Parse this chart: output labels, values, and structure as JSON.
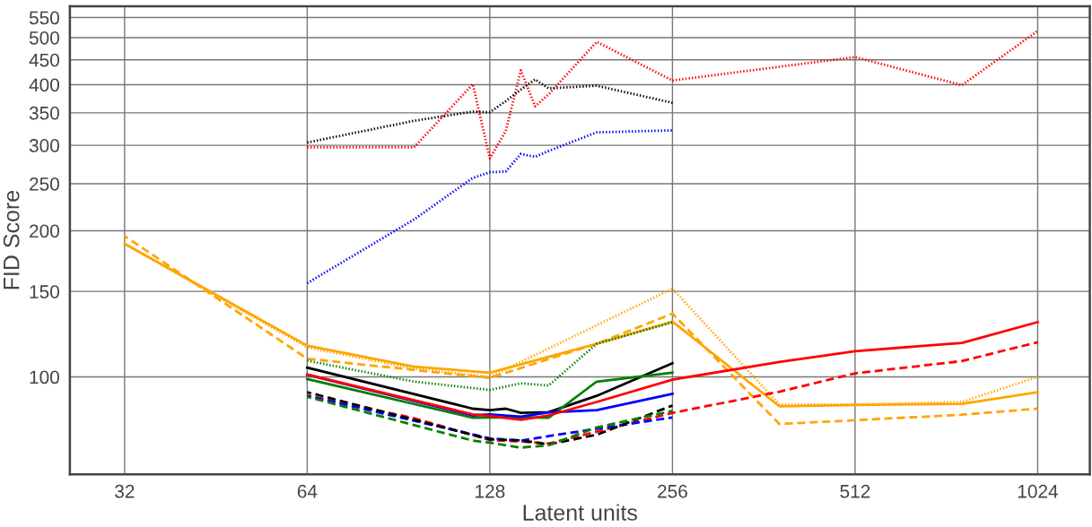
{
  "chart_data": {
    "type": "line",
    "xlabel": "Latent units",
    "ylabel": "FID Score",
    "log": "xy",
    "grid": true,
    "xlim": [
      26,
      1248
    ],
    "ylim": [
      63,
      580
    ],
    "xticks": [
      32,
      64,
      128,
      256,
      512,
      1024
    ],
    "yticks": [
      100,
      150,
      200,
      250,
      300,
      350,
      400,
      450,
      500,
      550
    ],
    "series": [
      {
        "color": "#ff0000",
        "line_style": "dotted",
        "x": [
          64,
          96,
          120,
          128,
          136,
          144,
          152,
          160,
          192,
          256,
          512,
          768,
          1024
        ],
        "values": [
          297,
          297,
          401,
          282,
          321,
          428,
          361,
          382,
          490,
          408,
          456,
          399,
          516
        ]
      },
      {
        "color": "#000000",
        "line_style": "dotted",
        "x": [
          64,
          96,
          120,
          128,
          136,
          144,
          152,
          160,
          192,
          256
        ],
        "values": [
          304,
          337,
          352,
          351,
          370,
          391,
          410,
          393,
          398,
          367
        ]
      },
      {
        "color": "#0000ff",
        "line_style": "dotted",
        "x": [
          64,
          96,
          120,
          128,
          136,
          144,
          152,
          160,
          192,
          256
        ],
        "values": [
          156,
          211,
          257,
          264,
          265,
          288,
          284,
          292,
          319,
          322
        ]
      },
      {
        "color": "#ffa500",
        "line_style": "solid",
        "x": [
          32,
          64,
          96,
          128,
          192,
          256,
          384,
          512,
          768,
          1024
        ],
        "values": [
          188,
          116,
          105,
          102,
          117,
          130,
          87,
          87.5,
          88,
          93
        ]
      },
      {
        "color": "#ffa500",
        "line_style": "dashed",
        "x": [
          32,
          64,
          128,
          192,
          256,
          384,
          512,
          768,
          1024
        ],
        "values": [
          195,
          109,
          99.5,
          117,
          135,
          80,
          81.4,
          83.6,
          86
        ]
      },
      {
        "color": "#ffa500",
        "line_style": "dotted",
        "x": [
          32,
          64,
          96,
          128,
          256,
          384,
          512,
          768,
          1024
        ],
        "values": [
          188,
          115,
          104,
          100,
          152,
          87.7,
          87.7,
          88.8,
          100
        ]
      },
      {
        "color": "#008000",
        "line_style": "dotted",
        "x": [
          64,
          96,
          128,
          144,
          160,
          192,
          256
        ],
        "values": [
          108,
          97.8,
          94,
          97,
          96,
          117,
          129.5
        ]
      },
      {
        "color": "#000000",
        "line_style": "solid",
        "x": [
          64,
          120,
          128,
          136,
          144,
          160,
          192,
          256
        ],
        "values": [
          104.5,
          86,
          85.4,
          86,
          84.3,
          84.6,
          91.4,
          106.7
        ]
      },
      {
        "color": "#008000",
        "line_style": "solid",
        "x": [
          64,
          120,
          128,
          144,
          160,
          192,
          256
        ],
        "values": [
          99,
          82.4,
          82.5,
          82.6,
          82.4,
          97.8,
          102
        ]
      },
      {
        "color": "#0000ff",
        "line_style": "solid",
        "x": [
          64,
          120,
          128,
          144,
          160,
          192,
          256
        ],
        "values": [
          101,
          83.3,
          83.7,
          82.8,
          84.5,
          85.4,
          92.3
        ]
      },
      {
        "color": "#ff0000",
        "line_style": "solid",
        "x": [
          64,
          120,
          128,
          144,
          160,
          192,
          256,
          384,
          512,
          768,
          1024
        ],
        "values": [
          101.1,
          83.7,
          83.1,
          81.6,
          83.3,
          88.8,
          98.7,
          107.3,
          113,
          117.5,
          129.7
        ]
      },
      {
        "color": "#ff0000",
        "line_style": "dashed",
        "x": [
          64,
          96,
          128,
          144,
          160,
          256,
          384,
          512,
          768,
          1024
        ],
        "values": [
          91.6,
          82.2,
          74.1,
          73.6,
          72.9,
          84.3,
          93.2,
          101.7,
          107.8,
          117.9
        ]
      },
      {
        "color": "#0000ff",
        "line_style": "dashed",
        "x": [
          64,
          128,
          144,
          160,
          192,
          256
        ],
        "values": [
          91.4,
          74.7,
          73.9,
          75.5,
          78.2,
          82.5
        ]
      },
      {
        "color": "#000000",
        "line_style": "dashed",
        "x": [
          64,
          128,
          144,
          160,
          192,
          256
        ],
        "values": [
          93,
          74.4,
          74,
          72.6,
          76,
          87.3
        ]
      },
      {
        "color": "#008000",
        "line_style": "dashed",
        "x": [
          64,
          120,
          128,
          144,
          160,
          192,
          256
        ],
        "values": [
          91,
          73.9,
          73.2,
          71.5,
          72.3,
          78.7,
          85.1
        ]
      }
    ]
  }
}
